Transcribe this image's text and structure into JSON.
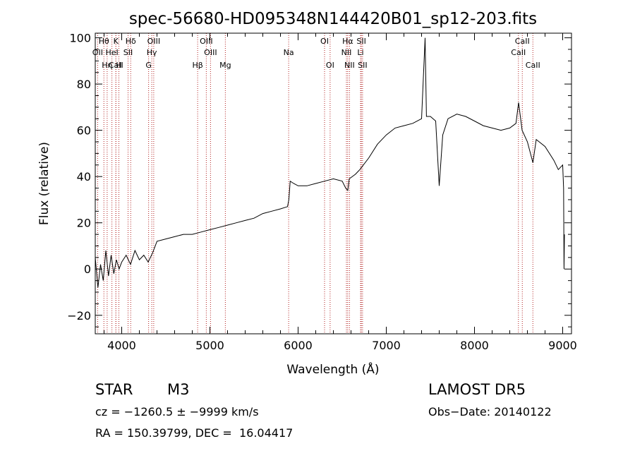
{
  "chart_data": {
    "type": "line",
    "title": "spec-56680-HD095348N144420B01_sp12-203.fits",
    "xlabel": "Wavelength (Å)",
    "ylabel": "Flux (relative)",
    "xlim": [
      3700,
      9100
    ],
    "ylim": [
      -28,
      102
    ],
    "xticks": [
      4000,
      5000,
      6000,
      7000,
      8000,
      9000
    ],
    "yticks": [
      -20,
      0,
      20,
      40,
      60,
      80,
      100
    ],
    "line_color": "#000000",
    "marker_color": "#b22222",
    "series": [
      {
        "points": [
          [
            3700,
            5
          ],
          [
            3730,
            -8
          ],
          [
            3760,
            2
          ],
          [
            3790,
            -5
          ],
          [
            3820,
            8
          ],
          [
            3850,
            -3
          ],
          [
            3880,
            6
          ],
          [
            3910,
            -2
          ],
          [
            3940,
            4
          ],
          [
            3970,
            0
          ],
          [
            4000,
            3
          ],
          [
            4050,
            6
          ],
          [
            4100,
            2
          ],
          [
            4150,
            8
          ],
          [
            4200,
            4
          ],
          [
            4250,
            6
          ],
          [
            4300,
            3
          ],
          [
            4350,
            7
          ],
          [
            4400,
            12
          ],
          [
            4500,
            13
          ],
          [
            4600,
            14
          ],
          [
            4700,
            15
          ],
          [
            4800,
            15
          ],
          [
            4900,
            16
          ],
          [
            5000,
            17
          ],
          [
            5100,
            18
          ],
          [
            5200,
            19
          ],
          [
            5300,
            20
          ],
          [
            5400,
            21
          ],
          [
            5500,
            22
          ],
          [
            5600,
            24
          ],
          [
            5700,
            25
          ],
          [
            5800,
            26
          ],
          [
            5880,
            27
          ],
          [
            5895,
            30
          ],
          [
            5910,
            38
          ],
          [
            5950,
            37
          ],
          [
            6000,
            36
          ],
          [
            6100,
            36
          ],
          [
            6200,
            37
          ],
          [
            6300,
            38
          ],
          [
            6400,
            39
          ],
          [
            6500,
            38
          ],
          [
            6540,
            35
          ],
          [
            6563,
            34
          ],
          [
            6580,
            39
          ],
          [
            6650,
            41
          ],
          [
            6700,
            43
          ],
          [
            6800,
            48
          ],
          [
            6900,
            54
          ],
          [
            7000,
            58
          ],
          [
            7100,
            61
          ],
          [
            7200,
            62
          ],
          [
            7300,
            63
          ],
          [
            7400,
            65
          ],
          [
            7440,
            100
          ],
          [
            7455,
            66
          ],
          [
            7500,
            66
          ],
          [
            7560,
            64
          ],
          [
            7600,
            36
          ],
          [
            7640,
            58
          ],
          [
            7700,
            65
          ],
          [
            7800,
            67
          ],
          [
            7900,
            66
          ],
          [
            8000,
            64
          ],
          [
            8100,
            62
          ],
          [
            8200,
            61
          ],
          [
            8300,
            60
          ],
          [
            8400,
            61
          ],
          [
            8470,
            63
          ],
          [
            8500,
            72
          ],
          [
            8540,
            60
          ],
          [
            8600,
            55
          ],
          [
            8662,
            46
          ],
          [
            8700,
            56
          ],
          [
            8800,
            53
          ],
          [
            8900,
            47
          ],
          [
            8950,
            43
          ],
          [
            9000,
            45
          ],
          [
            9010,
            35
          ],
          [
            9015,
            0
          ],
          [
            9020,
            15
          ]
        ]
      }
    ],
    "line_markers": [
      {
        "label": "Hθ",
        "x": 3798,
        "row": 1
      },
      {
        "label": "OII",
        "x": 3727,
        "row": 2
      },
      {
        "label": "CaII",
        "x": 3934,
        "row": 3
      },
      {
        "label": "Hη",
        "x": 3835,
        "row": 3
      },
      {
        "label": "K",
        "x": 3934,
        "row": 1
      },
      {
        "label": "HeI",
        "x": 3889,
        "row": 2
      },
      {
        "label": "H",
        "x": 3968,
        "row": 3
      },
      {
        "label": "Hδ",
        "x": 4102,
        "row": 1
      },
      {
        "label": "SII",
        "x": 4072,
        "row": 2
      },
      {
        "label": "OIII",
        "x": 4363,
        "row": 1
      },
      {
        "label": "Hγ",
        "x": 4341,
        "row": 2
      },
      {
        "label": "G",
        "x": 4305,
        "row": 3
      },
      {
        "label": "OIII",
        "x": 4959,
        "row": 1
      },
      {
        "label": "OIII",
        "x": 5007,
        "row": 2
      },
      {
        "label": "Hβ",
        "x": 4861,
        "row": 3
      },
      {
        "label": "Mg",
        "x": 5175,
        "row": 3
      },
      {
        "label": "Na",
        "x": 5893,
        "row": 2
      },
      {
        "label": "OI",
        "x": 6300,
        "row": 1
      },
      {
        "label": "OI",
        "x": 6363,
        "row": 3
      },
      {
        "label": "Hα",
        "x": 6563,
        "row": 1
      },
      {
        "label": "NII",
        "x": 6548,
        "row": 2
      },
      {
        "label": "NII",
        "x": 6583,
        "row": 3
      },
      {
        "label": "SII",
        "x": 6717,
        "row": 1
      },
      {
        "label": "Li",
        "x": 6708,
        "row": 2
      },
      {
        "label": "SII",
        "x": 6731,
        "row": 3
      },
      {
        "label": "CaII",
        "x": 8542,
        "row": 1
      },
      {
        "label": "CaII",
        "x": 8498,
        "row": 2
      },
      {
        "label": "CaII",
        "x": 8662,
        "row": 3
      }
    ]
  },
  "info": {
    "object_class": "STAR",
    "subclass": "M3",
    "survey": "LAMOST DR5",
    "velocity": "cz = −1260.5 ± −9999 km/s",
    "obs_date": "Obs−Date: 20140122",
    "coords": "RA = 150.39799, DEC =  16.04417"
  }
}
